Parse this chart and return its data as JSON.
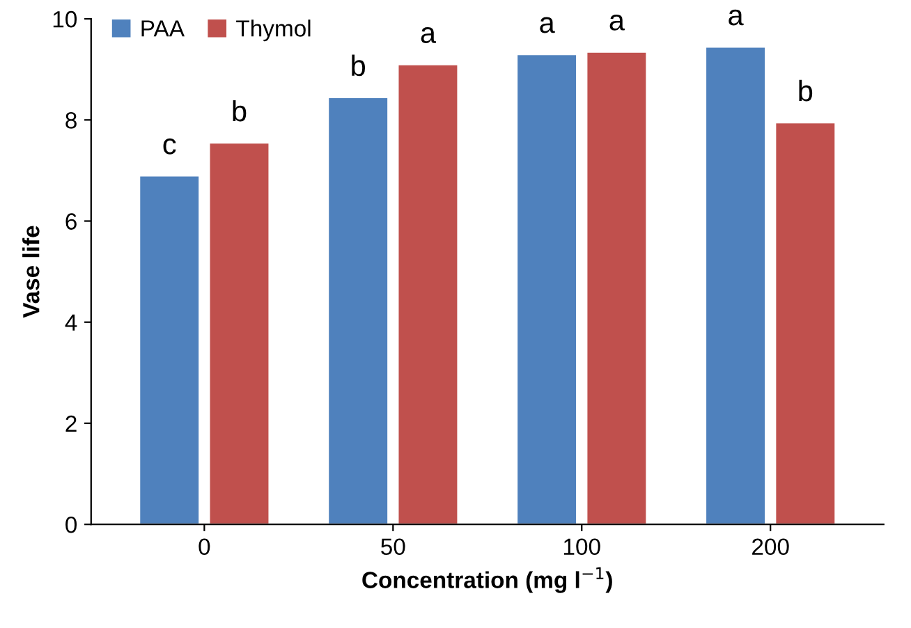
{
  "chart_data": {
    "type": "bar",
    "xlabel": "Concentration (mg l$^{−1}$)",
    "ylabel": "Vase life",
    "categories": [
      "0",
      "50",
      "100",
      "200"
    ],
    "series": [
      {
        "name": "PAA",
        "color": "#4f81bd",
        "values": [
          6.9,
          8.45,
          9.3,
          9.45
        ]
      },
      {
        "name": "Thymol",
        "color": "#c0504d",
        "values": [
          7.55,
          9.1,
          9.35,
          7.95
        ]
      }
    ],
    "ylim": [
      0,
      10
    ],
    "yticks": [
      0,
      2,
      4,
      6,
      8,
      10
    ],
    "grid": false,
    "legend": "top left",
    "annotations": [
      {
        "text": "c",
        "x": "0",
        "y": 6.9
      },
      {
        "text": "b",
        "x": "50",
        "y": 8.45
      },
      {
        "text": "a",
        "x": "100",
        "y": 9.3
      },
      {
        "text": "a",
        "x": "200",
        "y": 9.45
      },
      {
        "text": "b",
        "x": "0",
        "y": 7.55
      },
      {
        "text": "a",
        "x": "50",
        "y": 9.1
      },
      {
        "text": "a",
        "x": "100",
        "y": 9.35
      },
      {
        "text": "b",
        "x": "200",
        "y": 7.95
      }
    ]
  }
}
